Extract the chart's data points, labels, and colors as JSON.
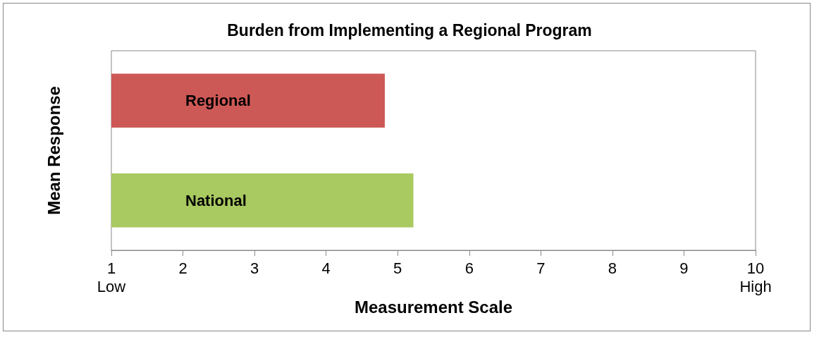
{
  "chart_data": {
    "type": "bar",
    "orientation": "horizontal",
    "title": "Burden from Implementing a Regional Program",
    "xlabel": "Measurement Scale",
    "ylabel": "Mean Response",
    "categories": [
      "Regional",
      "National"
    ],
    "values": [
      4.82,
      5.22
    ],
    "colors": [
      "#cd5957",
      "#a9c961"
    ],
    "xlim": [
      1,
      10
    ],
    "xticks": [
      {
        "value": 1,
        "label": "1\nLow"
      },
      2,
      3,
      4,
      5,
      6,
      7,
      8,
      9,
      {
        "value": 10,
        "label": "10\nHigh"
      }
    ],
    "tick_labels": "x",
    "grid": false
  }
}
